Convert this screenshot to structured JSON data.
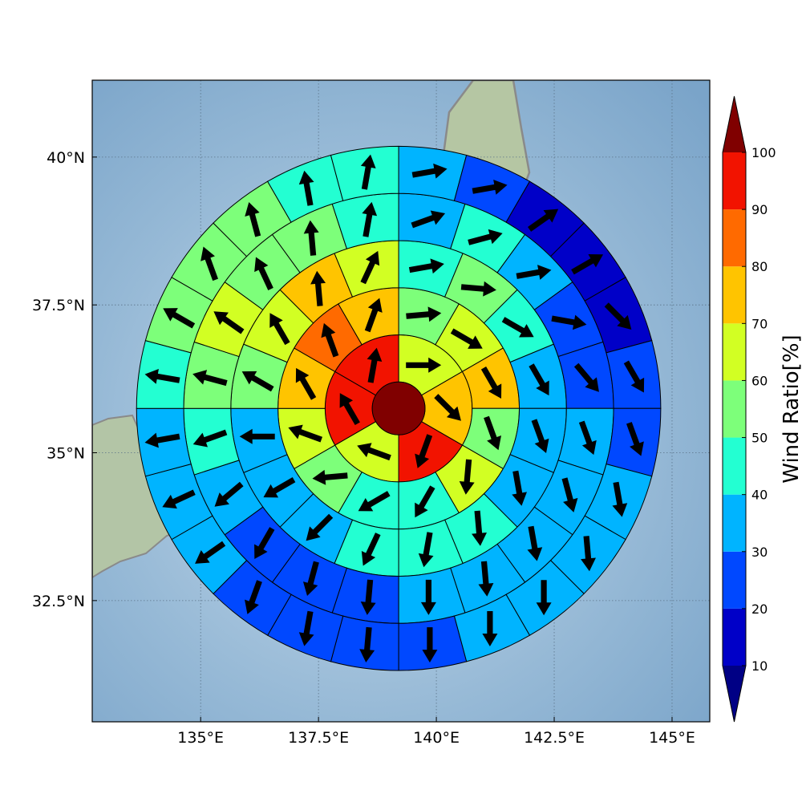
{
  "chart_data": {
    "type": "heatmap",
    "chart_kind": "polar wind-ratio map with wind-direction arrows over a map background",
    "xlim": [
      132.7,
      145.8
    ],
    "ylim": [
      30.45,
      41.3
    ],
    "x_ticks": [
      135,
      137.5,
      140,
      142.5,
      145
    ],
    "x_tick_labels": [
      "135°E",
      "137.5°E",
      "140°E",
      "142.5°E",
      "145°E"
    ],
    "y_ticks": [
      32.5,
      35,
      37.5,
      40
    ],
    "y_tick_labels": [
      "32.5°N",
      "35°N",
      "37.5°N",
      "40°N"
    ],
    "grid": true,
    "grid_style": "dotted",
    "center": [
      139.2,
      35.75
    ],
    "ring_radii_deg": [
      0.56,
      1.56,
      2.56,
      3.56,
      4.56,
      5.56
    ],
    "ring_sectors": [
      {
        "ring": 1,
        "start_az": 0,
        "step_az": 60
      },
      {
        "ring": 2,
        "start_az": 0,
        "step_az": 30
      },
      {
        "ring": 3,
        "start_az": 0,
        "step_az": 22.5
      },
      {
        "ring": 4,
        "start_az": 0,
        "step_az": 18
      },
      {
        "ring": 5,
        "start_az": 0,
        "step_az": 15
      }
    ],
    "center_value": 100,
    "ring_values": [
      [
        65,
        75,
        90,
        65,
        90,
        90
      ],
      [
        55,
        65,
        75,
        55,
        65,
        45,
        45,
        55,
        65,
        75,
        85,
        75
      ],
      [
        45,
        55,
        45,
        35,
        35,
        35,
        45,
        45,
        45,
        35,
        35,
        35,
        55,
        65,
        75,
        65
      ],
      [
        35,
        45,
        35,
        25,
        25,
        35,
        35,
        35,
        35,
        35,
        25,
        25,
        25,
        35,
        45,
        55,
        65,
        55,
        55,
        45
      ],
      [
        35,
        25,
        15,
        15,
        15,
        25,
        25,
        35,
        35,
        35,
        35,
        25,
        25,
        25,
        25,
        35,
        35,
        35,
        45,
        55,
        55,
        55,
        45,
        45
      ]
    ],
    "arrow_directions_deg": [
      [
        90,
        135,
        200,
        290,
        330,
        10
      ],
      [
        85,
        120,
        150,
        160,
        185,
        210,
        240,
        265,
        290,
        330,
        340,
        20
      ],
      [
        80,
        95,
        120,
        150,
        160,
        170,
        175,
        190,
        205,
        225,
        240,
        270,
        300,
        330,
        355,
        25
      ],
      [
        70,
        75,
        80,
        100,
        140,
        160,
        165,
        170,
        175,
        180,
        185,
        195,
        210,
        230,
        250,
        285,
        305,
        335,
        355,
        10
      ],
      [
        80,
        80,
        55,
        60,
        135,
        150,
        160,
        170,
        175,
        180,
        180,
        180,
        185,
        190,
        200,
        235,
        245,
        260,
        280,
        300,
        340,
        345,
        350,
        10
      ]
    ],
    "colorbar": {
      "label": "Wind Ratio[%]",
      "ticks": [
        10,
        20,
        30,
        40,
        50,
        60,
        70,
        80,
        90,
        100
      ],
      "boundaries": [
        10,
        20,
        30,
        40,
        50,
        60,
        70,
        80,
        90,
        100
      ],
      "colors": [
        "#0000c8",
        "#0048ff",
        "#00b4ff",
        "#23ffd2",
        "#7dff7a",
        "#d2ff23",
        "#ffc400",
        "#ff6a00",
        "#f21300"
      ],
      "under_color": "#000085",
      "over_color": "#800000",
      "extend": "both"
    }
  }
}
